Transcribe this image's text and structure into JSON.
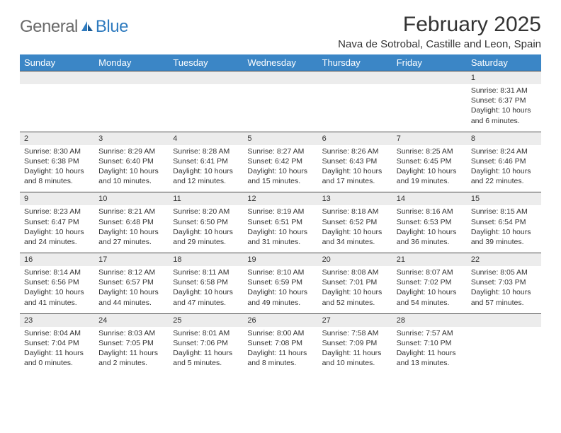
{
  "brand": {
    "part1": "General",
    "part2": "Blue"
  },
  "header": {
    "title": "February 2025",
    "location": "Nava de Sotrobal, Castille and Leon, Spain"
  },
  "style": {
    "header_bg": "#3b86c6",
    "header_text": "#ffffff",
    "daynum_bg": "#ececec",
    "border_color": "#4a4a4a",
    "logo_gray": "#6a6a6a",
    "logo_blue": "#2f7bbf",
    "body_text": "#333333",
    "page_bg": "#ffffff",
    "title_fontsize": 30,
    "location_fontsize": 15,
    "dayhead_fontsize": 13,
    "cell_fontsize": 10.5
  },
  "columns": [
    "Sunday",
    "Monday",
    "Tuesday",
    "Wednesday",
    "Thursday",
    "Friday",
    "Saturday"
  ],
  "weeks": [
    {
      "nums": [
        "",
        "",
        "",
        "",
        "",
        "",
        "1"
      ],
      "cells": [
        "",
        "",
        "",
        "",
        "",
        "",
        "Sunrise: 8:31 AM\nSunset: 6:37 PM\nDaylight: 10 hours and 6 minutes."
      ]
    },
    {
      "nums": [
        "2",
        "3",
        "4",
        "5",
        "6",
        "7",
        "8"
      ],
      "cells": [
        "Sunrise: 8:30 AM\nSunset: 6:38 PM\nDaylight: 10 hours and 8 minutes.",
        "Sunrise: 8:29 AM\nSunset: 6:40 PM\nDaylight: 10 hours and 10 minutes.",
        "Sunrise: 8:28 AM\nSunset: 6:41 PM\nDaylight: 10 hours and 12 minutes.",
        "Sunrise: 8:27 AM\nSunset: 6:42 PM\nDaylight: 10 hours and 15 minutes.",
        "Sunrise: 8:26 AM\nSunset: 6:43 PM\nDaylight: 10 hours and 17 minutes.",
        "Sunrise: 8:25 AM\nSunset: 6:45 PM\nDaylight: 10 hours and 19 minutes.",
        "Sunrise: 8:24 AM\nSunset: 6:46 PM\nDaylight: 10 hours and 22 minutes."
      ]
    },
    {
      "nums": [
        "9",
        "10",
        "11",
        "12",
        "13",
        "14",
        "15"
      ],
      "cells": [
        "Sunrise: 8:23 AM\nSunset: 6:47 PM\nDaylight: 10 hours and 24 minutes.",
        "Sunrise: 8:21 AM\nSunset: 6:48 PM\nDaylight: 10 hours and 27 minutes.",
        "Sunrise: 8:20 AM\nSunset: 6:50 PM\nDaylight: 10 hours and 29 minutes.",
        "Sunrise: 8:19 AM\nSunset: 6:51 PM\nDaylight: 10 hours and 31 minutes.",
        "Sunrise: 8:18 AM\nSunset: 6:52 PM\nDaylight: 10 hours and 34 minutes.",
        "Sunrise: 8:16 AM\nSunset: 6:53 PM\nDaylight: 10 hours and 36 minutes.",
        "Sunrise: 8:15 AM\nSunset: 6:54 PM\nDaylight: 10 hours and 39 minutes."
      ]
    },
    {
      "nums": [
        "16",
        "17",
        "18",
        "19",
        "20",
        "21",
        "22"
      ],
      "cells": [
        "Sunrise: 8:14 AM\nSunset: 6:56 PM\nDaylight: 10 hours and 41 minutes.",
        "Sunrise: 8:12 AM\nSunset: 6:57 PM\nDaylight: 10 hours and 44 minutes.",
        "Sunrise: 8:11 AM\nSunset: 6:58 PM\nDaylight: 10 hours and 47 minutes.",
        "Sunrise: 8:10 AM\nSunset: 6:59 PM\nDaylight: 10 hours and 49 minutes.",
        "Sunrise: 8:08 AM\nSunset: 7:01 PM\nDaylight: 10 hours and 52 minutes.",
        "Sunrise: 8:07 AM\nSunset: 7:02 PM\nDaylight: 10 hours and 54 minutes.",
        "Sunrise: 8:05 AM\nSunset: 7:03 PM\nDaylight: 10 hours and 57 minutes."
      ]
    },
    {
      "nums": [
        "23",
        "24",
        "25",
        "26",
        "27",
        "28",
        ""
      ],
      "cells": [
        "Sunrise: 8:04 AM\nSunset: 7:04 PM\nDaylight: 11 hours and 0 minutes.",
        "Sunrise: 8:03 AM\nSunset: 7:05 PM\nDaylight: 11 hours and 2 minutes.",
        "Sunrise: 8:01 AM\nSunset: 7:06 PM\nDaylight: 11 hours and 5 minutes.",
        "Sunrise: 8:00 AM\nSunset: 7:08 PM\nDaylight: 11 hours and 8 minutes.",
        "Sunrise: 7:58 AM\nSunset: 7:09 PM\nDaylight: 11 hours and 10 minutes.",
        "Sunrise: 7:57 AM\nSunset: 7:10 PM\nDaylight: 11 hours and 13 minutes.",
        ""
      ]
    }
  ]
}
